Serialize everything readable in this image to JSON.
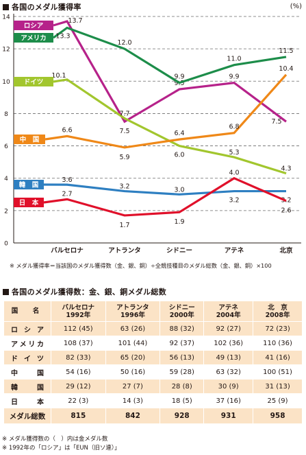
{
  "section1": {
    "title": "各国のメダル獲得率"
  },
  "unit_label": "(%)",
  "chart_data": {
    "type": "line",
    "categories": [
      "バルセロナ",
      "アトランタ",
      "シドニー",
      "アテネ",
      "北京"
    ],
    "ylim": [
      0,
      14
    ],
    "yticks": [
      "0",
      "2",
      "4",
      "6",
      "8",
      "10",
      "12",
      "14"
    ],
    "grid": "dashed horizontal",
    "series": [
      {
        "name": "ロシア",
        "color": "#b6228a",
        "values": [
          13.7,
          7.5,
          9.5,
          9.9,
          7.5
        ],
        "labels": [
          "13.7",
          "7.5",
          "9.5",
          "9.9",
          "7.5"
        ]
      },
      {
        "name": "アメリカ",
        "color": "#1d8d4a",
        "values": [
          13.3,
          12.0,
          9.9,
          11.0,
          11.5
        ],
        "labels": [
          "13.3",
          "12.0",
          "9.9",
          "11.0",
          "11.5"
        ]
      },
      {
        "name": "ドイツ",
        "color": "#a2c62e",
        "values": [
          10.1,
          7.7,
          6.0,
          5.3,
          4.3
        ],
        "labels": [
          "10.1",
          "7.7",
          "6.0",
          "5.3",
          "4.3"
        ]
      },
      {
        "name": "中　国",
        "color": "#ef8818",
        "values": [
          6.6,
          5.9,
          6.4,
          6.8,
          10.4
        ],
        "labels": [
          "6.6",
          "5.9",
          "6.4",
          "6.8",
          "10.4"
        ]
      },
      {
        "name": "韓　国",
        "color": "#2e7fc1",
        "values": [
          3.6,
          3.2,
          3.0,
          3.2,
          3.2
        ],
        "labels": [
          "3.6",
          "3.2",
          "3.0",
          "3.2",
          "3.2"
        ]
      },
      {
        "name": "日　本",
        "color": "#e0102a",
        "values": [
          2.7,
          1.7,
          1.9,
          4.0,
          2.6
        ],
        "labels": [
          "2.7",
          "1.7",
          "1.9",
          "4.0",
          "2.6"
        ]
      }
    ]
  },
  "note1": "※ メダル獲得率＝当該国のメダル獲得数（金、銀、銅）÷全競技種目のメダル総数（金、銀、銅）×100",
  "section2": {
    "title": "各国のメダル獲得数：金、銀、銅メダル総数"
  },
  "table": {
    "country_header": "国　名",
    "columns": [
      {
        "line1": "バルセロナ",
        "line2": "1992年"
      },
      {
        "line1": "アトランタ",
        "line2": "1996年"
      },
      {
        "line1": "シドニー",
        "line2": "2000年"
      },
      {
        "line1": "アテネ",
        "line2": "2004年"
      },
      {
        "line1": "北　京",
        "line2": "2008年"
      }
    ],
    "rows": [
      {
        "country": [
          "ロ",
          "シ",
          "ア"
        ],
        "cells": [
          "112 (45)",
          "63 (26)",
          "88 (32)",
          "92 (27)",
          "72 (23)"
        ]
      },
      {
        "country": [
          "ア",
          "メ",
          "リ",
          "カ"
        ],
        "cells": [
          "108 (37)",
          "101 (44)",
          "92 (37)",
          "102 (36)",
          "110 (36)"
        ]
      },
      {
        "country": [
          "ド",
          "イ",
          "ツ"
        ],
        "cells": [
          "82 (33)",
          "65 (20)",
          "56 (13)",
          "49 (13)",
          "41 (16)"
        ]
      },
      {
        "country": [
          "中",
          "国"
        ],
        "cells": [
          "54 (16)",
          "50 (16)",
          "59 (28)",
          "63 (32)",
          "100 (51)"
        ]
      },
      {
        "country": [
          "韓",
          "国"
        ],
        "cells": [
          "29 (12)",
          "27 (7)",
          "28 (8)",
          "30 (9)",
          "31 (13)"
        ]
      },
      {
        "country": [
          "日",
          "本"
        ],
        "cells": [
          "22 (3)",
          "14 (3)",
          "18 (5)",
          "37 (16)",
          "25 (9)"
        ]
      }
    ],
    "total_label": "メダル総数",
    "totals": [
      "815",
      "842",
      "928",
      "931",
      "958"
    ]
  },
  "notes": [
    "※ メダル獲得数の（　）内は金メダル数",
    "※ 1992年の「ロシア」は「EUN（旧ソ連）」"
  ]
}
